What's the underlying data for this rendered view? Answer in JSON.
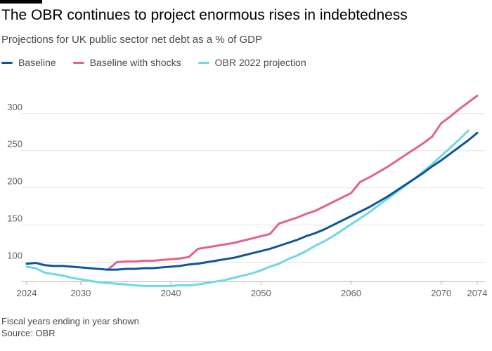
{
  "header": {
    "title": "The OBR continues to project enormous rises in indebtedness",
    "subtitle": "Projections for UK public sector net debt as a % of GDP"
  },
  "footer": {
    "note": "Fiscal years ending in year shown",
    "source": "Source: OBR"
  },
  "colors": {
    "baseline": "#0f5499",
    "shocks": "#e3628f",
    "obr2022": "#6fd8e2",
    "grid": "#e6e2dd",
    "tick_text": "#66605c"
  },
  "chart_data": {
    "type": "line",
    "title": "The OBR continues to project enormous rises in indebtedness",
    "subtitle": "Projections for UK public sector net debt as a % of GDP",
    "xlabel": "",
    "ylabel": "",
    "xlim": [
      2024,
      2074
    ],
    "ylim": [
      75,
      330
    ],
    "x_ticks": [
      2024,
      2030,
      2040,
      2050,
      2060,
      2070,
      2074
    ],
    "y_ticks": [
      100,
      150,
      200,
      250,
      300
    ],
    "grid": true,
    "legend": "top-left",
    "series": [
      {
        "name": "Baseline",
        "color_key": "baseline",
        "x": [
          2024,
          2025,
          2026,
          2027,
          2028,
          2029,
          2030,
          2031,
          2032,
          2033,
          2034,
          2035,
          2036,
          2037,
          2038,
          2039,
          2040,
          2041,
          2042,
          2043,
          2044,
          2045,
          2046,
          2047,
          2048,
          2049,
          2050,
          2051,
          2052,
          2053,
          2054,
          2055,
          2056,
          2057,
          2058,
          2059,
          2060,
          2061,
          2062,
          2063,
          2064,
          2065,
          2066,
          2067,
          2068,
          2069,
          2070,
          2071,
          2072,
          2073,
          2074
        ],
        "values": [
          98,
          99,
          96,
          95,
          95,
          94,
          93,
          92,
          91,
          90,
          90,
          91,
          91,
          92,
          92,
          93,
          94,
          95,
          97,
          98,
          100,
          102,
          104,
          106,
          109,
          112,
          115,
          118,
          122,
          126,
          130,
          135,
          139,
          144,
          150,
          156,
          162,
          168,
          174,
          181,
          188,
          196,
          204,
          212,
          220,
          229,
          237,
          246,
          255,
          264,
          274
        ]
      },
      {
        "name": "Baseline with shocks",
        "color_key": "shocks",
        "x": [
          2033,
          2034,
          2035,
          2036,
          2037,
          2038,
          2039,
          2040,
          2041,
          2042,
          2043,
          2044,
          2045,
          2046,
          2047,
          2048,
          2049,
          2050,
          2051,
          2052,
          2053,
          2054,
          2055,
          2056,
          2057,
          2058,
          2059,
          2060,
          2061,
          2062,
          2063,
          2064,
          2065,
          2066,
          2067,
          2068,
          2069,
          2070,
          2071,
          2072,
          2073,
          2074
        ],
        "values": [
          90,
          100,
          101,
          101,
          102,
          102,
          103,
          104,
          105,
          107,
          118,
          120,
          122,
          124,
          126,
          129,
          132,
          135,
          138,
          152,
          156,
          160,
          165,
          169,
          175,
          181,
          187,
          193,
          208,
          214,
          221,
          228,
          236,
          244,
          252,
          260,
          269,
          287,
          296,
          306,
          315,
          324
        ]
      },
      {
        "name": "OBR 2022 projection",
        "color_key": "obr2022",
        "x": [
          2024,
          2025,
          2026,
          2027,
          2028,
          2029,
          2030,
          2031,
          2032,
          2033,
          2034,
          2035,
          2036,
          2037,
          2038,
          2039,
          2040,
          2041,
          2042,
          2043,
          2044,
          2045,
          2046,
          2047,
          2048,
          2049,
          2050,
          2051,
          2052,
          2053,
          2054,
          2055,
          2056,
          2057,
          2058,
          2059,
          2060,
          2061,
          2062,
          2063,
          2064,
          2065,
          2066,
          2067,
          2068,
          2069,
          2070,
          2071,
          2072,
          2073
        ],
        "values": [
          94,
          92,
          86,
          84,
          82,
          79,
          77,
          75,
          73,
          72,
          71,
          70,
          69,
          68,
          68,
          68,
          68,
          69,
          69,
          70,
          72,
          74,
          76,
          79,
          82,
          85,
          89,
          94,
          98,
          104,
          109,
          115,
          122,
          128,
          135,
          143,
          151,
          159,
          167,
          176,
          185,
          194,
          203,
          212,
          222,
          232,
          243,
          254,
          265,
          277
        ]
      }
    ]
  }
}
